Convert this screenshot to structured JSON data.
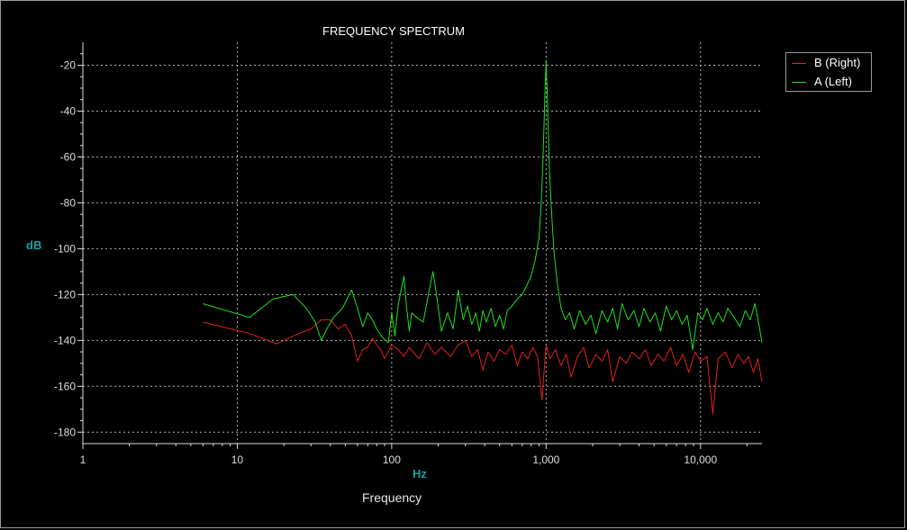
{
  "chart_data": {
    "type": "line",
    "title": "FREQUENCY SPECTRUM",
    "xlabel": "Frequency",
    "xunit": "Hz",
    "ylabel": "dB",
    "x_scale": "log",
    "xlim": [
      1,
      25000
    ],
    "ylim": [
      -185,
      -10
    ],
    "x_ticks": [
      1,
      10,
      100,
      1000,
      10000
    ],
    "x_tick_labels": [
      "1",
      "10",
      "100",
      "1,000",
      "10,000"
    ],
    "y_ticks": [
      -20,
      -40,
      -60,
      -80,
      -100,
      -120,
      -140,
      -160,
      -180
    ],
    "y_tick_labels": [
      "-20",
      "-40",
      "-60",
      "-80",
      "-100",
      "-120",
      "-140",
      "-160",
      "-180"
    ],
    "grid": true,
    "legend_position": "top-right",
    "series": [
      {
        "name": "B (Right)",
        "color": "#e02020",
        "points": [
          [
            6,
            -132
          ],
          [
            12,
            -137
          ],
          [
            18,
            -141.5
          ],
          [
            25,
            -137
          ],
          [
            30,
            -135
          ],
          [
            35,
            -131
          ],
          [
            40,
            -131
          ],
          [
            45,
            -135
          ],
          [
            50,
            -133
          ],
          [
            55,
            -138
          ],
          [
            60,
            -149
          ],
          [
            65,
            -144
          ],
          [
            70,
            -143
          ],
          [
            75,
            -139
          ],
          [
            80,
            -142
          ],
          [
            85,
            -144
          ],
          [
            90,
            -148
          ],
          [
            100,
            -142
          ],
          [
            110,
            -144
          ],
          [
            120,
            -147
          ],
          [
            130,
            -143
          ],
          [
            150,
            -148
          ],
          [
            170,
            -141
          ],
          [
            190,
            -146
          ],
          [
            210,
            -143
          ],
          [
            240,
            -147
          ],
          [
            270,
            -142
          ],
          [
            300,
            -140
          ],
          [
            330,
            -147
          ],
          [
            360,
            -144
          ],
          [
            390,
            -153
          ],
          [
            420,
            -145
          ],
          [
            460,
            -149
          ],
          [
            500,
            -144
          ],
          [
            550,
            -146
          ],
          [
            600,
            -142
          ],
          [
            650,
            -151
          ],
          [
            700,
            -145
          ],
          [
            760,
            -148
          ],
          [
            820,
            -143
          ],
          [
            880,
            -147
          ],
          [
            940,
            -166
          ],
          [
            1000,
            -142
          ],
          [
            1060,
            -148
          ],
          [
            1150,
            -144
          ],
          [
            1250,
            -151
          ],
          [
            1350,
            -146
          ],
          [
            1450,
            -156
          ],
          [
            1600,
            -147
          ],
          [
            1750,
            -143
          ],
          [
            1900,
            -152
          ],
          [
            2100,
            -146
          ],
          [
            2300,
            -149
          ],
          [
            2500,
            -144
          ],
          [
            2700,
            -158
          ],
          [
            3000,
            -147
          ],
          [
            3300,
            -150
          ],
          [
            3600,
            -145
          ],
          [
            4000,
            -148
          ],
          [
            4400,
            -144
          ],
          [
            4800,
            -151
          ],
          [
            5300,
            -146
          ],
          [
            5800,
            -149
          ],
          [
            6400,
            -143
          ],
          [
            7000,
            -151
          ],
          [
            7700,
            -146
          ],
          [
            8400,
            -154
          ],
          [
            9200,
            -145
          ],
          [
            10000,
            -149
          ],
          [
            11000,
            -147
          ],
          [
            12000,
            -172
          ],
          [
            13000,
            -148
          ],
          [
            14500,
            -145
          ],
          [
            16000,
            -152
          ],
          [
            17500,
            -146
          ],
          [
            19000,
            -150
          ],
          [
            20500,
            -147
          ],
          [
            22000,
            -154
          ],
          [
            23500,
            -148
          ],
          [
            25000,
            -158
          ]
        ]
      },
      {
        "name": "A (Left)",
        "color": "#22dd22",
        "points": [
          [
            6,
            -124
          ],
          [
            12,
            -130
          ],
          [
            17,
            -122
          ],
          [
            23,
            -120
          ],
          [
            28,
            -126
          ],
          [
            32,
            -132
          ],
          [
            35,
            -140
          ],
          [
            38,
            -135
          ],
          [
            42,
            -130
          ],
          [
            48,
            -126
          ],
          [
            55,
            -118
          ],
          [
            60,
            -126
          ],
          [
            65,
            -134
          ],
          [
            70,
            -128
          ],
          [
            75,
            -131
          ],
          [
            80,
            -135
          ],
          [
            88,
            -139
          ],
          [
            95,
            -141
          ],
          [
            100,
            -128
          ],
          [
            105,
            -138
          ],
          [
            110,
            -125
          ],
          [
            115,
            -118
          ],
          [
            120,
            -112
          ],
          [
            125,
            -126
          ],
          [
            130,
            -136
          ],
          [
            135,
            -128
          ],
          [
            145,
            -130
          ],
          [
            160,
            -132
          ],
          [
            175,
            -118
          ],
          [
            185,
            -110
          ],
          [
            195,
            -120
          ],
          [
            210,
            -136
          ],
          [
            230,
            -128
          ],
          [
            250,
            -135
          ],
          [
            270,
            -118
          ],
          [
            290,
            -131
          ],
          [
            310,
            -125
          ],
          [
            330,
            -133
          ],
          [
            350,
            -128
          ],
          [
            370,
            -136
          ],
          [
            390,
            -127
          ],
          [
            410,
            -132
          ],
          [
            440,
            -126
          ],
          [
            470,
            -134
          ],
          [
            500,
            -129
          ],
          [
            530,
            -135
          ],
          [
            560,
            -127
          ],
          [
            600,
            -125
          ],
          [
            650,
            -122
          ],
          [
            700,
            -120
          ],
          [
            750,
            -116
          ],
          [
            800,
            -112
          ],
          [
            850,
            -105
          ],
          [
            900,
            -95
          ],
          [
            930,
            -80
          ],
          [
            950,
            -65
          ],
          [
            970,
            -45
          ],
          [
            985,
            -30
          ],
          [
            1000,
            -18
          ],
          [
            1015,
            -30
          ],
          [
            1030,
            -45
          ],
          [
            1050,
            -65
          ],
          [
            1080,
            -82
          ],
          [
            1120,
            -100
          ],
          [
            1180,
            -115
          ],
          [
            1250,
            -126
          ],
          [
            1330,
            -131
          ],
          [
            1420,
            -128
          ],
          [
            1520,
            -135
          ],
          [
            1650,
            -127
          ],
          [
            1800,
            -133
          ],
          [
            1950,
            -129
          ],
          [
            2100,
            -137
          ],
          [
            2300,
            -127
          ],
          [
            2500,
            -132
          ],
          [
            2700,
            -126
          ],
          [
            2900,
            -135
          ],
          [
            3100,
            -124
          ],
          [
            3400,
            -131
          ],
          [
            3700,
            -127
          ],
          [
            4000,
            -134
          ],
          [
            4300,
            -126
          ],
          [
            4700,
            -132
          ],
          [
            5100,
            -128
          ],
          [
            5500,
            -136
          ],
          [
            6000,
            -125
          ],
          [
            6500,
            -131
          ],
          [
            7000,
            -127
          ],
          [
            7600,
            -133
          ],
          [
            8200,
            -129
          ],
          [
            8900,
            -144
          ],
          [
            9600,
            -128
          ],
          [
            10300,
            -131
          ],
          [
            11000,
            -126
          ],
          [
            12000,
            -133
          ],
          [
            13000,
            -128
          ],
          [
            14000,
            -132
          ],
          [
            15000,
            -126
          ],
          [
            16500,
            -130
          ],
          [
            18000,
            -134
          ],
          [
            19500,
            -127
          ],
          [
            21000,
            -131
          ],
          [
            22500,
            -124
          ],
          [
            24000,
            -134
          ],
          [
            25000,
            -141
          ]
        ]
      }
    ]
  },
  "colors": {
    "background": "#000000",
    "grid": "#b4b4b4",
    "axis": "#dddddd",
    "label_accent": "#22a0a0"
  }
}
